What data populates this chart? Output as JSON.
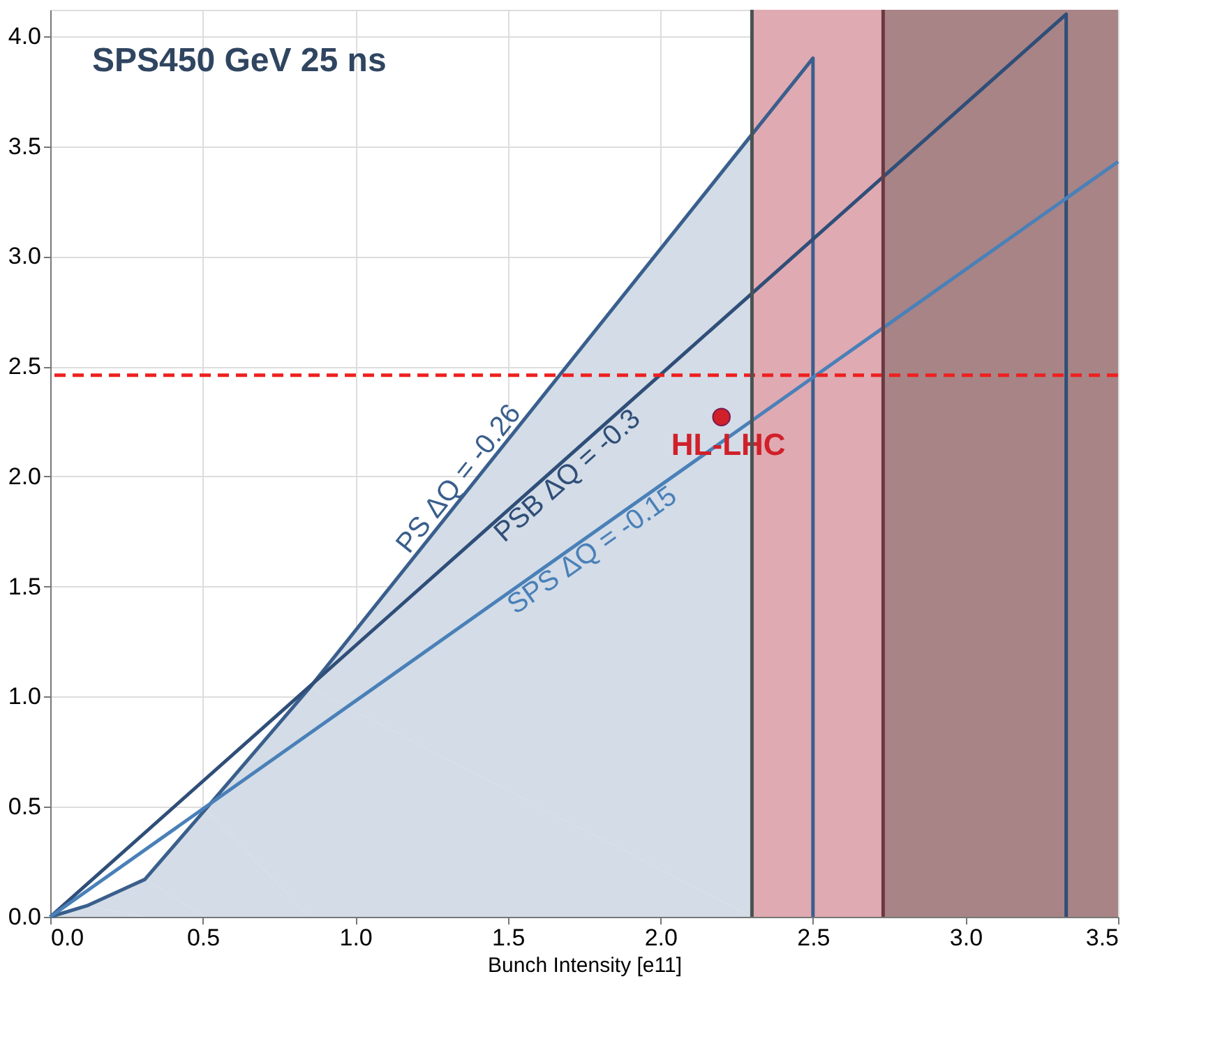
{
  "chart_data": {
    "type": "line",
    "title": "SPS450 GeV 25 ns",
    "xlabel": "Bunch Intensity [e11]",
    "xlim": [
      0,
      3.5
    ],
    "ylim": [
      0,
      4.12
    ],
    "xticks": [
      {
        "value": 0,
        "label": "0.0"
      },
      0.5,
      {
        "value": 1,
        "label": "1.0"
      },
      1.5,
      {
        "value": 2,
        "label": "2.0"
      },
      2.5,
      {
        "value": 3,
        "label": "3.0"
      },
      3.5
    ],
    "yticks": [
      {
        "value": 0,
        "label": "0.0"
      },
      0.5,
      {
        "value": 1,
        "label": "1.0"
      },
      1.5,
      {
        "value": 2,
        "label": "2.0"
      },
      2.5,
      {
        "value": 3,
        "label": "3.0"
      },
      3.5,
      {
        "value": 4,
        "label": "4.0"
      }
    ],
    "grid": true,
    "line_style": "solid",
    "series": [
      {
        "type": "area",
        "color": "#d3dce7",
        "x": [
          0,
          0.12,
          0.31,
          0.51,
          0.85,
          2.3
        ],
        "values": [
          0,
          0.05,
          0.17,
          0.49,
          1.04,
          3.57
        ]
      },
      {
        "name": "PS ΔQ = -0.26",
        "color": "#3a5f8c",
        "x": [
          0,
          0.12,
          0.31,
          0.51,
          0.85,
          2.5,
          2.5
        ],
        "values": [
          0,
          0.05,
          0.17,
          0.49,
          1.04,
          3.9,
          0
        ]
      },
      {
        "name": "PSB ΔQ = -0.3",
        "color": "#2f4e78",
        "x": [
          0,
          3.33,
          3.33
        ],
        "values": [
          0,
          4.1,
          0
        ]
      },
      {
        "name": "SPS ΔQ = -0.15",
        "color": "#4a80b8",
        "x": [
          0,
          3.5
        ],
        "values": [
          0,
          3.43
        ]
      },
      {
        "name": "HL-LHC",
        "type": "scatter",
        "marker": "circle",
        "color": "#d0202a",
        "x": [
          2.2
        ],
        "values": [
          2.27
        ]
      }
    ],
    "bands": [
      {
        "axis": "x",
        "from": 2.3,
        "to": 2.73,
        "color": "#e0aab2"
      },
      {
        "axis": "x",
        "from": 2.73,
        "to": 3.5,
        "color": "#a88486"
      }
    ],
    "ref_lines": [
      {
        "axis": "y",
        "value": 2.46,
        "color": "#ee2020",
        "line_style": "dashed"
      },
      {
        "axis": "x",
        "value": 2.3,
        "color": "#4a5252",
        "line_style": "solid"
      },
      {
        "axis": "x",
        "value": 2.73,
        "color": "#6a3a44",
        "line_style": "solid"
      }
    ]
  }
}
